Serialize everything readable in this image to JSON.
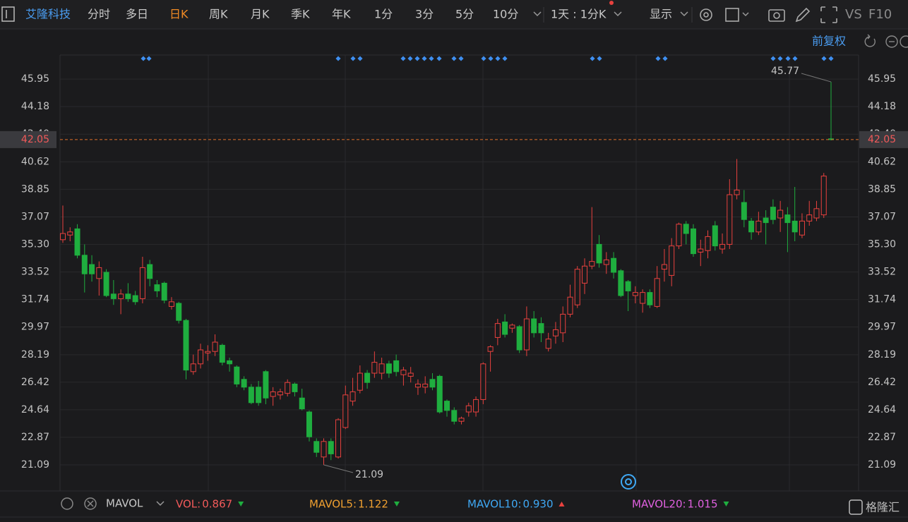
{
  "toolbar": {
    "stock_name": "艾隆科技",
    "tabs": [
      "分时",
      "多日",
      "日K",
      "周K",
      "月K",
      "季K",
      "年K",
      "1分",
      "3分",
      "5分",
      "10分"
    ],
    "active_tab": "日K",
    "period": "1天 : 1分K",
    "display": "显示",
    "vs": "VS",
    "f10": "F10"
  },
  "adjust": "前复权",
  "chart_data": {
    "type": "candlestick",
    "up_color": "#e8413e",
    "down_color": "#1fae3f",
    "ylim": [
      19.41,
      47.5
    ],
    "yticks": [
      21.09,
      22.87,
      24.64,
      26.42,
      28.19,
      29.97,
      31.74,
      33.52,
      {
        "value": 35.3,
        "label": "35.30"
      },
      37.07,
      38.85,
      40.62,
      {
        "value": 42.4,
        "label": "42.40"
      },
      44.18,
      45.95
    ],
    "grid": true,
    "open": [
      35.6,
      35.9,
      36.3,
      34.6,
      34.0,
      33.1,
      33.5,
      32.1,
      31.8,
      32.1,
      32.0,
      31.8,
      34.0,
      32.7,
      32.8,
      31.3,
      31.5,
      30.4,
      27.1,
      27.6,
      28.3,
      28.4,
      28.8,
      27.8,
      27.4,
      26.6,
      26.1,
      26.1,
      27.1,
      25.5,
      25.6,
      25.7,
      26.3,
      25.4,
      24.5,
      22.6,
      21.6,
      22.6,
      21.6,
      23.5,
      25.2,
      25.9,
      27.0,
      27.0,
      27.0,
      27.6,
      27.8,
      26.9,
      26.8,
      26.1,
      26.1,
      26.6,
      26.8,
      25.2,
      24.6,
      23.9,
      24.5,
      24.5,
      25.3,
      28.4,
      29.3,
      30.3,
      29.9,
      30.0,
      28.5,
      30.5,
      30.2,
      28.6,
      29.4,
      29.6,
      30.8,
      31.4,
      32.8,
      33.9,
      35.3,
      34.0,
      34.4,
      33.6,
      32.9,
      32.0,
      31.5,
      32.2,
      31.3,
      33.7,
      33.3,
      35.2,
      36.6,
      36.3,
      34.8,
      34.9,
      36.5,
      35.0,
      35.3,
      38.5,
      38.0,
      36.8,
      36.1,
      37.0,
      37.7,
      37.0,
      37.2,
      36.8,
      35.9,
      36.8,
      37.0,
      37.2,
      42.1
    ],
    "high": [
      37.8,
      36.4,
      36.6,
      35.3,
      34.6,
      34.2,
      33.7,
      33.0,
      32.4,
      32.8,
      32.3,
      34.5,
      34.3,
      33.0,
      32.9,
      31.9,
      31.6,
      30.5,
      28.2,
      28.9,
      28.8,
      29.5,
      28.9,
      28.0,
      27.5,
      26.8,
      26.3,
      26.5,
      27.2,
      26.1,
      26.0,
      26.6,
      26.4,
      26.0,
      24.6,
      22.8,
      22.8,
      22.8,
      24.1,
      26.2,
      26.7,
      27.5,
      27.2,
      28.4,
      28.0,
      27.8,
      28.2,
      27.4,
      27.4,
      26.6,
      26.8,
      27.0,
      26.9,
      25.3,
      24.8,
      24.2,
      25.1,
      25.5,
      27.7,
      28.8,
      30.5,
      30.8,
      30.2,
      30.1,
      31.3,
      31.0,
      30.6,
      29.6,
      30.3,
      31.3,
      32.7,
      33.9,
      34.4,
      37.7,
      35.9,
      34.8,
      34.8,
      33.7,
      33.0,
      32.6,
      32.4,
      32.4,
      33.9,
      35.0,
      35.7,
      36.7,
      36.8,
      36.6,
      35.6,
      36.2,
      36.8,
      36.0,
      39.5,
      40.8,
      38.8,
      37.0,
      37.4,
      37.5,
      38.2,
      38.1,
      37.7,
      39.0,
      37.3,
      38.1,
      38.1,
      39.9,
      45.77
    ],
    "low": [
      35.4,
      35.5,
      34.4,
      32.2,
      32.9,
      32.0,
      31.9,
      31.4,
      30.8,
      31.6,
      31.4,
      31.5,
      32.6,
      31.9,
      31.5,
      31.1,
      30.2,
      26.6,
      26.9,
      27.3,
      27.8,
      28.1,
      27.5,
      27.1,
      26.1,
      25.9,
      25.0,
      24.9,
      25.0,
      24.9,
      25.3,
      25.5,
      25.5,
      24.6,
      22.6,
      21.6,
      21.09,
      21.4,
      21.5,
      23.4,
      24.9,
      25.7,
      26.0,
      26.7,
      26.6,
      26.7,
      26.8,
      26.2,
      26.4,
      25.6,
      25.7,
      25.9,
      24.4,
      24.2,
      23.7,
      23.7,
      24.2,
      24.2,
      25.0,
      27.1,
      28.8,
      29.3,
      29.6,
      28.3,
      28.1,
      29.3,
      29.0,
      28.4,
      28.9,
      29.0,
      30.6,
      31.2,
      32.1,
      33.7,
      33.8,
      33.4,
      33.1,
      31.9,
      31.0,
      31.5,
      30.9,
      31.2,
      31.2,
      32.9,
      32.6,
      35.0,
      35.3,
      34.5,
      33.9,
      34.4,
      34.9,
      34.7,
      35.0,
      38.2,
      36.4,
      35.6,
      35.9,
      35.3,
      36.6,
      36.1,
      34.8,
      35.5,
      35.7,
      36.5,
      36.8,
      37.0,
      42.0
    ],
    "close": [
      36.0,
      36.1,
      34.6,
      33.4,
      33.4,
      33.8,
      32.0,
      31.8,
      32.1,
      31.8,
      31.6,
      33.8,
      33.1,
      32.3,
      31.7,
      31.6,
      30.4,
      27.2,
      27.6,
      28.5,
      28.4,
      29.0,
      27.7,
      27.6,
      26.3,
      26.1,
      25.1,
      25.1,
      25.4,
      25.8,
      25.8,
      26.4,
      25.8,
      24.7,
      22.9,
      21.9,
      22.6,
      21.8,
      24.0,
      25.6,
      25.8,
      27.0,
      26.4,
      27.7,
      27.6,
      27.0,
      27.1,
      27.2,
      27.0,
      26.3,
      26.3,
      26.1,
      24.5,
      24.6,
      23.9,
      24.1,
      24.9,
      25.3,
      27.6,
      28.7,
      30.2,
      29.5,
      30.1,
      28.5,
      30.5,
      29.6,
      29.6,
      29.2,
      29.8,
      30.8,
      31.9,
      33.7,
      33.9,
      34.2,
      34.1,
      34.3,
      33.5,
      32.0,
      32.3,
      32.2,
      32.2,
      31.4,
      33.1,
      34.0,
      35.2,
      36.6,
      36.0,
      34.7,
      35.0,
      35.8,
      35.2,
      35.3,
      38.5,
      38.8,
      36.9,
      36.1,
      36.8,
      36.7,
      36.9,
      37.5,
      36.7,
      36.1,
      36.8,
      37.2,
      37.6,
      39.7,
      42.05
    ]
  },
  "indicator": {
    "name": "MAVOL",
    "items": [
      {
        "label": "VOL:",
        "value": "0.867",
        "color": "#f25a5a",
        "trend": "down"
      },
      {
        "label": "MAVOL5:",
        "value": "1.122",
        "color": "#f0a030",
        "trend": "down"
      },
      {
        "label": "MAVOL10:",
        "value": "0.930",
        "color": "#3fa9f5",
        "trend": "up"
      },
      {
        "label": "MAVOL20:",
        "value": "1.015",
        "color": "#e060e0",
        "trend": "down"
      }
    ]
  },
  "watermark": "格隆汇"
}
